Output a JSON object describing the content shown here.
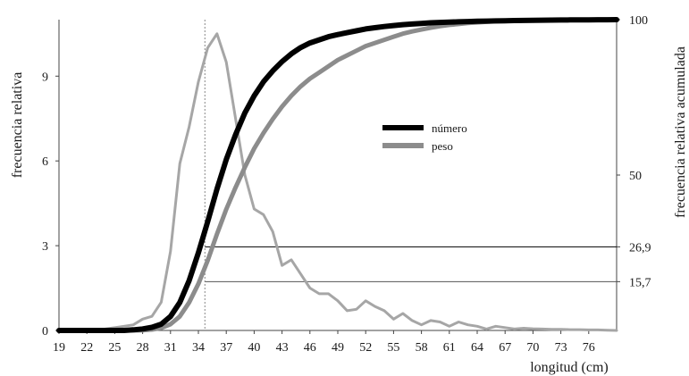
{
  "chart_data": {
    "type": "line",
    "xlabel": "longitud (cm)",
    "ylabel_left": "frecuencia relativa",
    "ylabel_right": "frecuencia relativa acumulada",
    "xlim": [
      19,
      79
    ],
    "ylim_left": [
      0,
      11
    ],
    "ylim_right": [
      0,
      100
    ],
    "x_ticks": [
      19,
      22,
      25,
      28,
      31,
      34,
      37,
      40,
      43,
      46,
      49,
      52,
      55,
      58,
      61,
      64,
      67,
      70,
      73,
      76
    ],
    "y_ticks_left": [
      0,
      3,
      6,
      9
    ],
    "y_ticks_right": [
      "100",
      "50"
    ],
    "reference_lines": [
      {
        "label": "26,9",
        "value": 26.9,
        "axis": "right",
        "color": "#000000"
      },
      {
        "label": "15,7",
        "value": 15.7,
        "axis": "right",
        "color": "#555555"
      }
    ],
    "vertical_marker": {
      "x": 34.7,
      "style": "dotted"
    },
    "legend": {
      "position": "center",
      "entries": [
        "número",
        "peso"
      ]
    },
    "grid": false,
    "series": [
      {
        "name": "número",
        "axis": "right",
        "color": "#000000",
        "x": [
          19,
          20,
          21,
          22,
          23,
          24,
          25,
          26,
          27,
          28,
          29,
          30,
          31,
          32,
          33,
          34,
          35,
          36,
          37,
          38,
          39,
          40,
          41,
          42,
          43,
          44,
          45,
          46,
          47,
          48,
          49,
          50,
          51,
          52,
          53,
          54,
          55,
          56,
          57,
          58,
          59,
          60,
          61,
          62,
          63,
          64,
          65,
          66,
          67,
          68,
          69,
          70,
          71,
          72,
          73,
          74,
          75,
          76,
          77,
          78,
          79
        ],
        "values": [
          0,
          0,
          0,
          0,
          0,
          0,
          0,
          0,
          0.2,
          0.5,
          1,
          2,
          4.5,
          9,
          16,
          25,
          35,
          45.5,
          55,
          63,
          70,
          75.5,
          80,
          83.5,
          86.5,
          89,
          91,
          92.5,
          93.5,
          94.5,
          95.2,
          95.8,
          96.4,
          97,
          97.4,
          97.8,
          98.1,
          98.4,
          98.6,
          98.8,
          99,
          99.1,
          99.2,
          99.3,
          99.4,
          99.5,
          99.55,
          99.6,
          99.65,
          99.7,
          99.75,
          99.8,
          99.82,
          99.85,
          99.88,
          99.9,
          99.92,
          99.95,
          99.97,
          99.98,
          100
        ]
      },
      {
        "name": "peso",
        "axis": "right",
        "color": "#8c8c8c",
        "x": [
          19,
          20,
          21,
          22,
          23,
          24,
          25,
          26,
          27,
          28,
          29,
          30,
          31,
          32,
          33,
          34,
          35,
          36,
          37,
          38,
          39,
          40,
          41,
          42,
          43,
          44,
          45,
          46,
          47,
          48,
          49,
          50,
          51,
          52,
          53,
          54,
          55,
          56,
          57,
          58,
          59,
          60,
          61,
          62,
          63,
          64,
          65,
          66,
          67,
          68,
          69,
          70,
          71,
          72,
          73,
          74,
          75,
          76,
          77,
          78,
          79
        ],
        "values": [
          0,
          0,
          0,
          0,
          0,
          0,
          0,
          0,
          0,
          0.1,
          0.3,
          0.8,
          2,
          4.5,
          9,
          15,
          22.5,
          31,
          39,
          46,
          52.5,
          58.5,
          63.5,
          68,
          72,
          75.5,
          78.5,
          81,
          83,
          85,
          87,
          88.5,
          90,
          91.5,
          92.5,
          93.5,
          94.5,
          95.5,
          96.2,
          96.8,
          97.4,
          97.9,
          98.3,
          98.6,
          98.9,
          99.1,
          99.3,
          99.45,
          99.55,
          99.65,
          99.72,
          99.78,
          99.83,
          99.87,
          99.9,
          99.93,
          99.95,
          99.97,
          99.98,
          99.99,
          100
        ]
      },
      {
        "name": "peso",
        "axis": "left",
        "color": "#a6a6a6",
        "x": [
          19,
          20,
          21,
          22,
          23,
          24,
          25,
          26,
          27,
          28,
          29,
          30,
          31,
          32,
          33,
          34,
          35,
          36,
          37,
          38,
          39,
          40,
          41,
          42,
          43,
          44,
          45,
          46,
          47,
          48,
          49,
          50,
          51,
          52,
          53,
          54,
          55,
          56,
          57,
          58,
          59,
          60,
          61,
          62,
          63,
          64,
          65,
          66,
          67,
          68,
          69,
          70,
          71,
          72,
          73,
          74,
          75,
          76,
          77,
          78,
          79
        ],
        "values": [
          0,
          0,
          0,
          0,
          0,
          0.05,
          0.1,
          0.15,
          0.2,
          0.4,
          0.5,
          1.0,
          2.8,
          5.9,
          7.2,
          8.8,
          10.0,
          10.5,
          9.5,
          7.5,
          5.5,
          4.3,
          4.1,
          3.5,
          2.3,
          2.5,
          2.0,
          1.5,
          1.3,
          1.3,
          1.05,
          0.7,
          0.75,
          1.05,
          0.85,
          0.7,
          0.4,
          0.6,
          0.35,
          0.2,
          0.35,
          0.3,
          0.15,
          0.3,
          0.2,
          0.15,
          0.05,
          0.15,
          0.1,
          0.05,
          0.08,
          0.06,
          0.05,
          0.04,
          0.04,
          0.03,
          0.03,
          0.02,
          0.02,
          0.01,
          0
        ]
      }
    ]
  }
}
